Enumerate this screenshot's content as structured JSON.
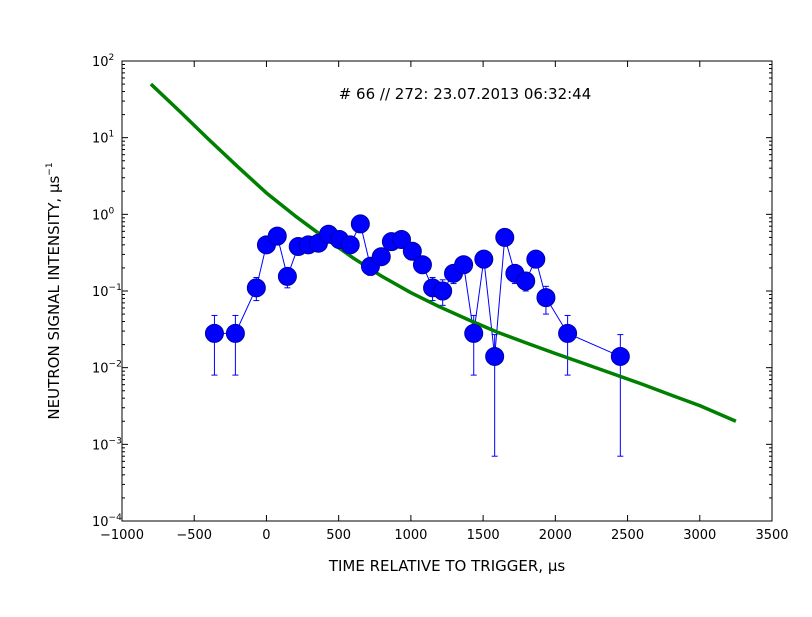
{
  "chart_data": {
    "type": "scatter",
    "title": "",
    "annotation": "# 66 // 272: 23.07.2013 06:32:44",
    "xlabel": {
      "prefix": "TIME RELATIVE TO TRIGGER, ",
      "unit": "μs"
    },
    "ylabel": {
      "prefix": "NEUTRON SIGNAL INTENSITY, ",
      "unit_base": "μs",
      "unit_exp": "−1"
    },
    "xlim": [
      -1000,
      3500
    ],
    "ylim": [
      0.0001,
      100
    ],
    "yscale": "log",
    "grid": false,
    "x_ticks": [
      {
        "value": -1000,
        "label": "−1000"
      },
      {
        "value": -500,
        "label": "−500"
      },
      {
        "value": 0,
        "label": "0"
      },
      {
        "value": 500,
        "label": "500"
      },
      {
        "value": 1000,
        "label": "1000"
      },
      {
        "value": 1500,
        "label": "1500"
      },
      {
        "value": 2000,
        "label": "2000"
      },
      {
        "value": 2500,
        "label": "2500"
      },
      {
        "value": 3000,
        "label": "3000"
      },
      {
        "value": 3500,
        "label": "3500"
      }
    ],
    "y_ticks": [
      {
        "value": 0.0001,
        "base": "10",
        "exp": "−4"
      },
      {
        "value": 0.001,
        "base": "10",
        "exp": "−3"
      },
      {
        "value": 0.01,
        "base": "10",
        "exp": "−2"
      },
      {
        "value": 0.1,
        "base": "10",
        "exp": "−1"
      },
      {
        "value": 1,
        "base": "10",
        "exp": "0"
      },
      {
        "value": 10,
        "base": "10",
        "exp": "1"
      },
      {
        "value": 100,
        "base": "10",
        "exp": "2"
      }
    ],
    "series": [
      {
        "kind": "points_with_errorbars",
        "color": "#0000ff",
        "edge_color": "#0000aa",
        "points": [
          {
            "x": -360,
            "y": 0.028,
            "lo": 0.008,
            "hi": 0.048
          },
          {
            "x": -215,
            "y": 0.028,
            "lo": 0.008,
            "hi": 0.048
          },
          {
            "x": -70,
            "y": 0.11,
            "lo": 0.075,
            "hi": 0.15
          },
          {
            "x": 0,
            "y": 0.4,
            "lo": 0.32,
            "hi": 0.48
          },
          {
            "x": 75,
            "y": 0.52,
            "lo": 0.44,
            "hi": 0.6
          },
          {
            "x": 145,
            "y": 0.155,
            "lo": 0.11,
            "hi": 0.2
          },
          {
            "x": 220,
            "y": 0.38,
            "lo": 0.31,
            "hi": 0.45
          },
          {
            "x": 290,
            "y": 0.4,
            "lo": 0.33,
            "hi": 0.47
          },
          {
            "x": 360,
            "y": 0.42,
            "lo": 0.35,
            "hi": 0.49
          },
          {
            "x": 430,
            "y": 0.55,
            "lo": 0.47,
            "hi": 0.63
          },
          {
            "x": 505,
            "y": 0.47,
            "lo": 0.4,
            "hi": 0.54
          },
          {
            "x": 580,
            "y": 0.4,
            "lo": 0.33,
            "hi": 0.47
          },
          {
            "x": 650,
            "y": 0.75,
            "lo": 0.65,
            "hi": 0.85
          },
          {
            "x": 720,
            "y": 0.21,
            "lo": 0.16,
            "hi": 0.26
          },
          {
            "x": 795,
            "y": 0.28,
            "lo": 0.22,
            "hi": 0.34
          },
          {
            "x": 865,
            "y": 0.44,
            "lo": 0.37,
            "hi": 0.51
          },
          {
            "x": 935,
            "y": 0.47,
            "lo": 0.4,
            "hi": 0.54
          },
          {
            "x": 1010,
            "y": 0.33,
            "lo": 0.27,
            "hi": 0.39
          },
          {
            "x": 1080,
            "y": 0.22,
            "lo": 0.17,
            "hi": 0.27
          },
          {
            "x": 1150,
            "y": 0.11,
            "lo": 0.075,
            "hi": 0.15
          },
          {
            "x": 1220,
            "y": 0.1,
            "lo": 0.065,
            "hi": 0.14
          },
          {
            "x": 1295,
            "y": 0.17,
            "lo": 0.125,
            "hi": 0.21
          },
          {
            "x": 1365,
            "y": 0.22,
            "lo": 0.17,
            "hi": 0.27
          },
          {
            "x": 1435,
            "y": 0.028,
            "lo": 0.008,
            "hi": 0.048
          },
          {
            "x": 1505,
            "y": 0.26,
            "lo": 0.2,
            "hi": 0.32
          },
          {
            "x": 1580,
            "y": 0.014,
            "lo": 0.0007,
            "hi": 0.027
          },
          {
            "x": 1650,
            "y": 0.5,
            "lo": 0.42,
            "hi": 0.58
          },
          {
            "x": 1720,
            "y": 0.17,
            "lo": 0.125,
            "hi": 0.21
          },
          {
            "x": 1795,
            "y": 0.135,
            "lo": 0.1,
            "hi": 0.17
          },
          {
            "x": 1865,
            "y": 0.26,
            "lo": 0.2,
            "hi": 0.32
          },
          {
            "x": 1935,
            "y": 0.082,
            "lo": 0.05,
            "hi": 0.115
          },
          {
            "x": 2085,
            "y": 0.028,
            "lo": 0.008,
            "hi": 0.048
          },
          {
            "x": 2450,
            "y": 0.014,
            "lo": 0.0007,
            "hi": 0.027
          }
        ]
      },
      {
        "kind": "line",
        "color": "#008000",
        "x": [
          -800,
          -600,
          -400,
          -200,
          0,
          200,
          400,
          600,
          800,
          1000,
          1200,
          1400,
          1600,
          1800,
          2000,
          2200,
          2400,
          2600,
          2800,
          3000,
          3250
        ],
        "y": [
          50,
          22,
          9.5,
          4.2,
          1.9,
          0.95,
          0.5,
          0.27,
          0.155,
          0.095,
          0.062,
          0.042,
          0.029,
          0.021,
          0.0153,
          0.0113,
          0.0083,
          0.0061,
          0.0044,
          0.0032,
          0.002
        ]
      }
    ]
  }
}
